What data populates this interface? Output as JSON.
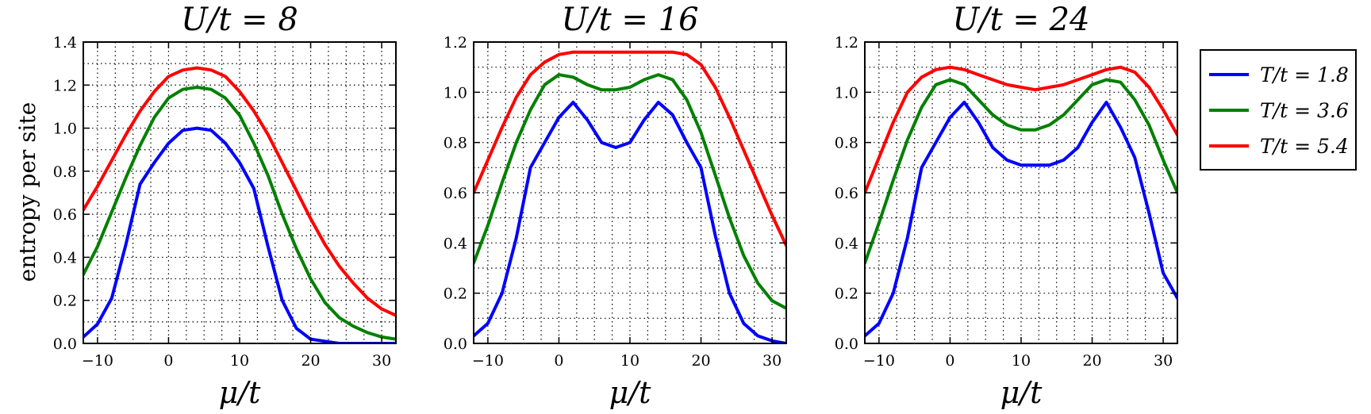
{
  "chart_data": {
    "type": "line",
    "ylabel": "entropy per site",
    "xlabel": "μ/t",
    "xlim": [
      -12,
      32
    ],
    "ylim": [
      0.0,
      1.2
    ],
    "grid": true,
    "legend_position": "right",
    "legend": [
      {
        "label": "T/t = 1.8",
        "color": "#0000ff"
      },
      {
        "label": "T/t = 3.6",
        "color": "#008000"
      },
      {
        "label": "T/t = 5.4",
        "color": "#ff0000"
      }
    ],
    "panels": [
      {
        "title": "U/t = 8",
        "ylim": [
          0.0,
          1.4
        ],
        "xticks": [
          "−10",
          "0",
          "10",
          "20",
          "30"
        ],
        "yticks": [
          "0.0",
          "0.2",
          "0.4",
          "0.6",
          "0.8",
          "1.0",
          "1.2",
          "1.4"
        ],
        "x": [
          -12,
          -10,
          -8,
          -6,
          -4,
          -2,
          0,
          2,
          4,
          6,
          8,
          10,
          12,
          14,
          16,
          18,
          20,
          22,
          24,
          26,
          28,
          30,
          32
        ],
        "series": [
          {
            "name": "T/t = 1.8",
            "color": "#0000ff",
            "values": [
              0.03,
              0.09,
              0.21,
              0.46,
              0.74,
              0.84,
              0.93,
              0.99,
              1.0,
              0.99,
              0.93,
              0.84,
              0.72,
              0.45,
              0.2,
              0.07,
              0.02,
              0.01,
              0.0,
              0.0,
              0.0,
              0.0,
              0.0
            ]
          },
          {
            "name": "T/t = 3.6",
            "color": "#008000",
            "values": [
              0.32,
              0.45,
              0.61,
              0.77,
              0.92,
              1.05,
              1.14,
              1.18,
              1.19,
              1.18,
              1.14,
              1.06,
              0.93,
              0.78,
              0.6,
              0.44,
              0.3,
              0.19,
              0.12,
              0.08,
              0.05,
              0.03,
              0.02
            ]
          },
          {
            "name": "T/t = 5.4",
            "color": "#ff0000",
            "values": [
              0.62,
              0.73,
              0.85,
              0.97,
              1.08,
              1.17,
              1.24,
              1.27,
              1.28,
              1.27,
              1.24,
              1.17,
              1.08,
              0.97,
              0.84,
              0.71,
              0.58,
              0.46,
              0.36,
              0.28,
              0.21,
              0.16,
              0.13
            ]
          }
        ]
      },
      {
        "title": "U/t = 16",
        "ylim": [
          0.0,
          1.2
        ],
        "xticks": [
          "−10",
          "0",
          "10",
          "20",
          "30"
        ],
        "yticks": [
          "0.0",
          "0.2",
          "0.4",
          "0.6",
          "0.8",
          "1.0",
          "1.2"
        ],
        "x": [
          -12,
          -10,
          -8,
          -6,
          -4,
          -2,
          0,
          2,
          4,
          6,
          8,
          10,
          12,
          14,
          16,
          18,
          20,
          22,
          24,
          26,
          28,
          30,
          32
        ],
        "series": [
          {
            "name": "T/t = 1.8",
            "color": "#0000ff",
            "values": [
              0.03,
              0.08,
              0.2,
              0.42,
              0.7,
              0.8,
              0.9,
              0.96,
              0.89,
              0.8,
              0.78,
              0.8,
              0.89,
              0.96,
              0.91,
              0.8,
              0.7,
              0.43,
              0.2,
              0.08,
              0.03,
              0.01,
              0.0
            ]
          },
          {
            "name": "T/t = 3.6",
            "color": "#008000",
            "values": [
              0.32,
              0.47,
              0.64,
              0.8,
              0.93,
              1.03,
              1.07,
              1.06,
              1.03,
              1.01,
              1.01,
              1.02,
              1.05,
              1.07,
              1.05,
              0.97,
              0.84,
              0.67,
              0.5,
              0.35,
              0.24,
              0.17,
              0.14
            ]
          },
          {
            "name": "T/t = 5.4",
            "color": "#ff0000",
            "values": [
              0.6,
              0.73,
              0.86,
              0.98,
              1.07,
              1.12,
              1.15,
              1.16,
              1.16,
              1.16,
              1.16,
              1.16,
              1.16,
              1.16,
              1.16,
              1.15,
              1.11,
              1.02,
              0.9,
              0.77,
              0.64,
              0.51,
              0.39
            ]
          }
        ]
      },
      {
        "title": "U/t = 24",
        "ylim": [
          0.0,
          1.2
        ],
        "xticks": [
          "−10",
          "0",
          "10",
          "20",
          "30"
        ],
        "yticks": [
          "0.0",
          "0.2",
          "0.4",
          "0.6",
          "0.8",
          "1.0",
          "1.2"
        ],
        "x": [
          -12,
          -10,
          -8,
          -6,
          -4,
          -2,
          0,
          2,
          4,
          6,
          8,
          10,
          12,
          14,
          16,
          18,
          20,
          22,
          24,
          26,
          28,
          30,
          32
        ],
        "series": [
          {
            "name": "T/t = 1.8",
            "color": "#0000ff",
            "values": [
              0.03,
              0.08,
              0.2,
              0.42,
              0.7,
              0.8,
              0.9,
              0.96,
              0.88,
              0.78,
              0.73,
              0.71,
              0.71,
              0.71,
              0.73,
              0.78,
              0.88,
              0.96,
              0.86,
              0.74,
              0.52,
              0.28,
              0.18
            ]
          },
          {
            "name": "T/t = 3.6",
            "color": "#008000",
            "values": [
              0.32,
              0.48,
              0.65,
              0.81,
              0.94,
              1.03,
              1.05,
              1.03,
              0.97,
              0.91,
              0.87,
              0.85,
              0.85,
              0.87,
              0.91,
              0.97,
              1.03,
              1.05,
              1.04,
              0.97,
              0.87,
              0.73,
              0.6
            ]
          },
          {
            "name": "T/t = 5.4",
            "color": "#ff0000",
            "values": [
              0.6,
              0.74,
              0.88,
              1.0,
              1.06,
              1.09,
              1.1,
              1.09,
              1.07,
              1.05,
              1.03,
              1.02,
              1.01,
              1.02,
              1.03,
              1.05,
              1.07,
              1.09,
              1.1,
              1.08,
              1.02,
              0.93,
              0.83
            ]
          }
        ]
      }
    ]
  }
}
